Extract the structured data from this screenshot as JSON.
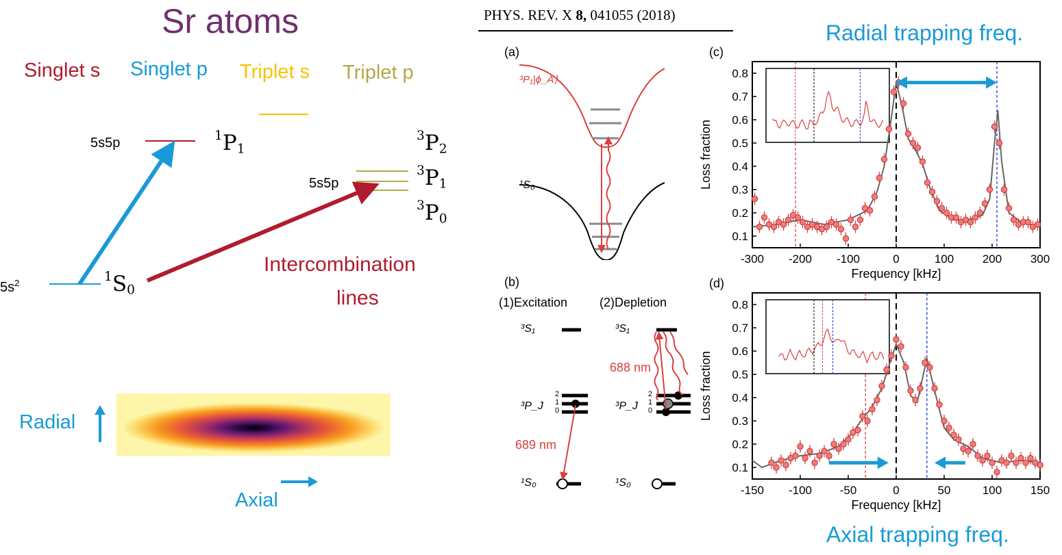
{
  "colors": {
    "sr_title": "#70306e",
    "singlet_s": "#b01c2e",
    "singlet_p": "#1a9ad6",
    "triplet_s": "#f5c400",
    "triplet_p": "#b5a84a",
    "data_point": "#f07b7b",
    "theory_line": "#666666"
  },
  "left": {
    "title": "Sr atoms",
    "legend": {
      "singlet_s": "Singlet s",
      "singlet_p": "Singlet p",
      "triplet_s": "Triplet s",
      "triplet_p": "Triplet p"
    },
    "levels": {
      "p1_config": "5s5p",
      "p1_letter": "P",
      "p1_mult": "1",
      "p1_j": "1",
      "ground_config_base": "5s",
      "ground_config_exp": "2",
      "s0_letter": "S",
      "s0_mult": "1",
      "s0_j": "0",
      "triplet_config": "5s5p",
      "p2_letter": "P",
      "p2_mult": "3",
      "p2_j": "2",
      "tp1_letter": "P",
      "tp1_mult": "3",
      "tp1_j": "1",
      "p0_letter": "P",
      "p0_mult": "3",
      "p0_j": "0"
    },
    "intercombination": [
      "Intercombination",
      "lines"
    ],
    "radial_label": "Radial",
    "axial_label": "Axial"
  },
  "paper": {
    "citation_prefix": "PHYS. REV. X ",
    "citation_volume": "8,",
    "citation_suffix": " 041055 (2018)",
    "panel_a_label": "(a)",
    "panel_a_upper_state": "³P₁|ϕ_A⟩",
    "panel_a_lower_state": "¹S₀",
    "panel_b_label": "(b)",
    "excitation_label": "(1)Excitation",
    "depletion_label": "(2)Depletion",
    "s1_state": "³S₁",
    "pj_state": "³P_J",
    "s0_state": "¹S₀",
    "j_levels": [
      "2",
      "1",
      "0"
    ],
    "wavelength_689": "689 nm",
    "wavelength_688": "688 nm",
    "panel_c_label": "(c)",
    "panel_d_label": "(d)",
    "radial_freq_title": "Radial trapping freq.",
    "axial_freq_title": "Axial trapping freq."
  },
  "chart_data": [
    {
      "type": "scatter",
      "panel": "(c)",
      "xlabel": "Frequency [kHz]",
      "ylabel": "Loss fraction",
      "xlim": [
        -300,
        300
      ],
      "ylim": [
        0.05,
        0.85
      ],
      "xticks": [
        -300,
        -200,
        -100,
        0,
        100,
        200,
        300
      ],
      "yticks": [
        0.1,
        0.2,
        0.3,
        0.4,
        0.5,
        0.6,
        0.7,
        0.8
      ],
      "vlines": [
        -210,
        0,
        210
      ],
      "data_points": [
        [
          -295,
          0.26
        ],
        [
          -285,
          0.14
        ],
        [
          -275,
          0.18
        ],
        [
          -265,
          0.15
        ],
        [
          -255,
          0.14
        ],
        [
          -245,
          0.16
        ],
        [
          -235,
          0.15
        ],
        [
          -225,
          0.17
        ],
        [
          -215,
          0.19
        ],
        [
          -205,
          0.18
        ],
        [
          -195,
          0.16
        ],
        [
          -185,
          0.14
        ],
        [
          -175,
          0.15
        ],
        [
          -165,
          0.14
        ],
        [
          -155,
          0.13
        ],
        [
          -145,
          0.14
        ],
        [
          -135,
          0.16
        ],
        [
          -125,
          0.15
        ],
        [
          -115,
          0.13
        ],
        [
          -105,
          0.09
        ],
        [
          -95,
          0.17
        ],
        [
          -85,
          0.14
        ],
        [
          -75,
          0.17
        ],
        [
          -65,
          0.22
        ],
        [
          -55,
          0.21
        ],
        [
          -45,
          0.27
        ],
        [
          -35,
          0.35
        ],
        [
          -25,
          0.43
        ],
        [
          -15,
          0.56
        ],
        [
          -5,
          0.72
        ],
        [
          5,
          0.76
        ],
        [
          15,
          0.67
        ],
        [
          25,
          0.54
        ],
        [
          35,
          0.5
        ],
        [
          45,
          0.48
        ],
        [
          55,
          0.42
        ],
        [
          65,
          0.33
        ],
        [
          75,
          0.29
        ],
        [
          85,
          0.25
        ],
        [
          95,
          0.22
        ],
        [
          105,
          0.2
        ],
        [
          115,
          0.18
        ],
        [
          125,
          0.18
        ],
        [
          135,
          0.16
        ],
        [
          145,
          0.17
        ],
        [
          155,
          0.16
        ],
        [
          165,
          0.18
        ],
        [
          175,
          0.2
        ],
        [
          185,
          0.24
        ],
        [
          195,
          0.3
        ],
        [
          205,
          0.57
        ],
        [
          215,
          0.5
        ],
        [
          225,
          0.3
        ],
        [
          235,
          0.22
        ],
        [
          245,
          0.17
        ],
        [
          255,
          0.15
        ],
        [
          265,
          0.16
        ],
        [
          275,
          0.16
        ],
        [
          285,
          0.14
        ],
        [
          295,
          0.15
        ]
      ],
      "theory_curve": [
        [
          -300,
          0.14
        ],
        [
          -250,
          0.15
        ],
        [
          -200,
          0.17
        ],
        [
          -150,
          0.15
        ],
        [
          -100,
          0.17
        ],
        [
          -60,
          0.21
        ],
        [
          -40,
          0.29
        ],
        [
          -25,
          0.4
        ],
        [
          -12,
          0.58
        ],
        [
          0,
          0.76
        ],
        [
          12,
          0.66
        ],
        [
          25,
          0.52
        ],
        [
          40,
          0.47
        ],
        [
          55,
          0.41
        ],
        [
          70,
          0.31
        ],
        [
          90,
          0.21
        ],
        [
          120,
          0.17
        ],
        [
          150,
          0.17
        ],
        [
          180,
          0.19
        ],
        [
          195,
          0.26
        ],
        [
          205,
          0.5
        ],
        [
          212,
          0.64
        ],
        [
          220,
          0.42
        ],
        [
          235,
          0.2
        ],
        [
          260,
          0.16
        ],
        [
          300,
          0.14
        ]
      ],
      "arrow": {
        "from": 0,
        "to": 210,
        "y": 0.76
      }
    },
    {
      "type": "scatter",
      "panel": "(d)",
      "xlabel": "Frequency [kHz]",
      "ylabel": "Loss fraction",
      "xlim": [
        -150,
        150
      ],
      "ylim": [
        0.05,
        0.85
      ],
      "xticks": [
        -150,
        -100,
        -50,
        0,
        50,
        100,
        150
      ],
      "yticks": [
        0.1,
        0.2,
        0.3,
        0.4,
        0.5,
        0.6,
        0.7,
        0.8
      ],
      "vlines": [
        -32,
        0,
        32
      ],
      "data_points": [
        [
          -130,
          0.12
        ],
        [
          -125,
          0.1
        ],
        [
          -120,
          0.13
        ],
        [
          -115,
          0.11
        ],
        [
          -110,
          0.14
        ],
        [
          -105,
          0.15
        ],
        [
          -100,
          0.19
        ],
        [
          -95,
          0.14
        ],
        [
          -90,
          0.17
        ],
        [
          -85,
          0.12
        ],
        [
          -80,
          0.15
        ],
        [
          -75,
          0.17
        ],
        [
          -70,
          0.15
        ],
        [
          -65,
          0.2
        ],
        [
          -60,
          0.18
        ],
        [
          -55,
          0.2
        ],
        [
          -50,
          0.22
        ],
        [
          -45,
          0.25
        ],
        [
          -40,
          0.26
        ],
        [
          -35,
          0.32
        ],
        [
          -30,
          0.3
        ],
        [
          -25,
          0.35
        ],
        [
          -20,
          0.39
        ],
        [
          -15,
          0.45
        ],
        [
          -10,
          0.52
        ],
        [
          -5,
          0.58
        ],
        [
          0,
          0.65
        ],
        [
          5,
          0.62
        ],
        [
          10,
          0.53
        ],
        [
          15,
          0.43
        ],
        [
          20,
          0.39
        ],
        [
          25,
          0.44
        ],
        [
          30,
          0.55
        ],
        [
          35,
          0.53
        ],
        [
          40,
          0.44
        ],
        [
          45,
          0.37
        ],
        [
          50,
          0.3
        ],
        [
          55,
          0.27
        ],
        [
          60,
          0.24
        ],
        [
          65,
          0.22
        ],
        [
          70,
          0.18
        ],
        [
          75,
          0.17
        ],
        [
          80,
          0.2
        ],
        [
          85,
          0.15
        ],
        [
          90,
          0.13
        ],
        [
          95,
          0.15
        ],
        [
          100,
          0.12
        ],
        [
          105,
          0.08
        ],
        [
          110,
          0.13
        ],
        [
          115,
          0.12
        ],
        [
          120,
          0.15
        ],
        [
          125,
          0.12
        ],
        [
          130,
          0.14
        ],
        [
          135,
          0.12
        ],
        [
          140,
          0.14
        ],
        [
          145,
          0.12
        ],
        [
          150,
          0.11
        ]
      ],
      "theory_curve": [
        [
          -150,
          0.13
        ],
        [
          -140,
          0.1
        ],
        [
          -120,
          0.13
        ],
        [
          -100,
          0.15
        ],
        [
          -80,
          0.16
        ],
        [
          -60,
          0.19
        ],
        [
          -45,
          0.25
        ],
        [
          -35,
          0.31
        ],
        [
          -25,
          0.36
        ],
        [
          -15,
          0.44
        ],
        [
          -5,
          0.57
        ],
        [
          0,
          0.63
        ],
        [
          8,
          0.55
        ],
        [
          15,
          0.41
        ],
        [
          22,
          0.38
        ],
        [
          32,
          0.57
        ],
        [
          40,
          0.43
        ],
        [
          50,
          0.27
        ],
        [
          60,
          0.22
        ],
        [
          75,
          0.19
        ],
        [
          90,
          0.14
        ],
        [
          110,
          0.12
        ],
        [
          130,
          0.13
        ],
        [
          150,
          0.12
        ]
      ],
      "arrows": [
        {
          "from": -70,
          "to": -8,
          "y": 0.12
        },
        {
          "from": 72,
          "to": 40,
          "y": 0.12
        }
      ]
    }
  ]
}
